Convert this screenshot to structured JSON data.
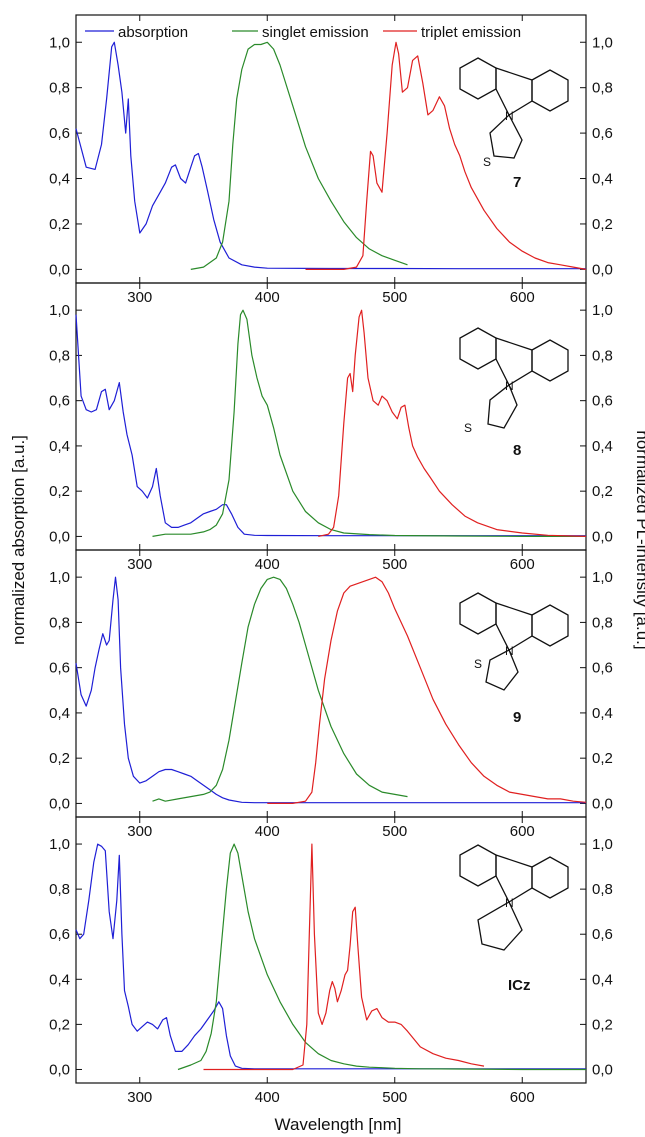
{
  "figure": {
    "ylabel_left": "normalized absorption [a.u.]",
    "ylabel_right": "normalized PL-intensity [a.u.]",
    "xlabel": "Wavelength [nm]"
  },
  "legend": {
    "absorption": "absorption",
    "singlet": "singlet emission",
    "triplet": "triplet emission"
  },
  "colors": {
    "absorption": "#1f1fd6",
    "singlet": "#2a8a2a",
    "triplet": "#e02020"
  },
  "chart_data": [
    {
      "type": "line",
      "compound_label": "7",
      "xlim": [
        250,
        650
      ],
      "ylim": [
        -0.06,
        1.12
      ],
      "x_ticks": [
        "300",
        "400",
        "500",
        "600"
      ],
      "y_ticks": [
        "0,0",
        "0,2",
        "0,4",
        "0,6",
        "0,8",
        "1,0"
      ],
      "series": [
        {
          "name": "absorption",
          "color": "#1f1fd6",
          "x": [
            250,
            258,
            265,
            270,
            274,
            278,
            280,
            283,
            286,
            289,
            291,
            293,
            296,
            300,
            305,
            310,
            316,
            320,
            325,
            328,
            332,
            336,
            340,
            343,
            346,
            349,
            353,
            358,
            363,
            370,
            380,
            390,
            400,
            450,
            500,
            550,
            600,
            650
          ],
          "y": [
            0.62,
            0.45,
            0.44,
            0.55,
            0.75,
            0.98,
            1.0,
            0.9,
            0.78,
            0.6,
            0.75,
            0.5,
            0.3,
            0.16,
            0.2,
            0.28,
            0.34,
            0.38,
            0.45,
            0.46,
            0.4,
            0.38,
            0.45,
            0.5,
            0.51,
            0.45,
            0.35,
            0.22,
            0.12,
            0.05,
            0.02,
            0.01,
            0.005,
            0.004,
            0.004,
            0.003,
            0.003,
            0.003
          ]
        },
        {
          "name": "singlet emission",
          "color": "#2a8a2a",
          "x": [
            340,
            350,
            360,
            365,
            370,
            373,
            376,
            380,
            385,
            390,
            395,
            400,
            405,
            410,
            420,
            430,
            440,
            450,
            460,
            470,
            480,
            490,
            500,
            510
          ],
          "y": [
            0.0,
            0.01,
            0.05,
            0.12,
            0.3,
            0.55,
            0.75,
            0.88,
            0.97,
            0.99,
            0.99,
            1.0,
            0.97,
            0.9,
            0.72,
            0.54,
            0.4,
            0.3,
            0.21,
            0.14,
            0.09,
            0.06,
            0.04,
            0.02
          ]
        },
        {
          "name": "triplet emission",
          "color": "#e02020",
          "x": [
            430,
            460,
            470,
            475,
            478,
            481,
            483,
            486,
            490,
            494,
            498,
            501,
            503,
            506,
            510,
            514,
            518,
            522,
            526,
            530,
            535,
            539,
            543,
            547,
            551,
            555,
            560,
            570,
            580,
            590,
            600,
            610,
            620,
            630,
            640,
            650
          ],
          "y": [
            0.0,
            0.0,
            0.01,
            0.06,
            0.3,
            0.52,
            0.5,
            0.38,
            0.34,
            0.6,
            0.9,
            1.0,
            0.95,
            0.78,
            0.8,
            0.92,
            0.94,
            0.82,
            0.68,
            0.7,
            0.76,
            0.72,
            0.62,
            0.55,
            0.5,
            0.43,
            0.36,
            0.26,
            0.18,
            0.12,
            0.08,
            0.05,
            0.03,
            0.02,
            0.01,
            0.0
          ]
        }
      ]
    },
    {
      "type": "line",
      "compound_label": "8",
      "xlim": [
        250,
        650
      ],
      "ylim": [
        -0.06,
        1.12
      ],
      "x_ticks": [
        "300",
        "400",
        "500",
        "600"
      ],
      "y_ticks": [
        "0,0",
        "0,2",
        "0,4",
        "0,6",
        "0,8",
        "1,0"
      ],
      "series": [
        {
          "name": "absorption",
          "color": "#1f1fd6",
          "x": [
            250,
            254,
            258,
            262,
            266,
            270,
            273,
            276,
            280,
            284,
            287,
            290,
            294,
            298,
            302,
            306,
            310,
            313,
            316,
            320,
            325,
            330,
            335,
            340,
            345,
            350,
            355,
            360,
            365,
            368,
            372,
            377,
            382,
            390,
            400,
            450,
            500,
            550,
            600,
            650
          ],
          "y": [
            0.98,
            0.62,
            0.56,
            0.55,
            0.56,
            0.64,
            0.65,
            0.56,
            0.6,
            0.68,
            0.55,
            0.45,
            0.36,
            0.22,
            0.2,
            0.17,
            0.22,
            0.3,
            0.18,
            0.06,
            0.04,
            0.04,
            0.05,
            0.06,
            0.08,
            0.1,
            0.11,
            0.12,
            0.14,
            0.14,
            0.1,
            0.04,
            0.01,
            0.005,
            0.004,
            0.003,
            0.003,
            0.003,
            0.003,
            0.003
          ]
        },
        {
          "name": "singlet emission",
          "color": "#2a8a2a",
          "x": [
            310,
            320,
            330,
            340,
            350,
            355,
            360,
            365,
            370,
            374,
            377,
            379,
            381,
            384,
            388,
            392,
            396,
            400,
            405,
            410,
            420,
            430,
            440,
            450,
            460,
            480,
            500,
            550,
            600,
            650
          ],
          "y": [
            0.0,
            0.01,
            0.01,
            0.01,
            0.02,
            0.03,
            0.05,
            0.1,
            0.25,
            0.55,
            0.85,
            0.98,
            1.0,
            0.96,
            0.8,
            0.7,
            0.62,
            0.58,
            0.48,
            0.36,
            0.2,
            0.11,
            0.06,
            0.03,
            0.015,
            0.008,
            0.004,
            0.002,
            0.0,
            0.0
          ]
        },
        {
          "name": "triplet emission",
          "color": "#e02020",
          "x": [
            440,
            448,
            452,
            456,
            460,
            463,
            465,
            467,
            469,
            472,
            474,
            476,
            479,
            483,
            487,
            490,
            494,
            498,
            502,
            505,
            508,
            511,
            514,
            518,
            523,
            528,
            535,
            545,
            555,
            565,
            580,
            600,
            620,
            650
          ],
          "y": [
            0.0,
            0.01,
            0.04,
            0.18,
            0.5,
            0.7,
            0.72,
            0.64,
            0.8,
            0.97,
            1.0,
            0.9,
            0.7,
            0.6,
            0.58,
            0.62,
            0.6,
            0.55,
            0.52,
            0.57,
            0.58,
            0.48,
            0.4,
            0.35,
            0.3,
            0.26,
            0.2,
            0.14,
            0.09,
            0.06,
            0.03,
            0.015,
            0.005,
            0.0
          ]
        }
      ]
    },
    {
      "type": "line",
      "compound_label": "9",
      "xlim": [
        250,
        650
      ],
      "ylim": [
        -0.06,
        1.12
      ],
      "x_ticks": [
        "300",
        "400",
        "500",
        "600"
      ],
      "y_ticks": [
        "0,0",
        "0,2",
        "0,4",
        "0,6",
        "0,8",
        "1,0"
      ],
      "series": [
        {
          "name": "absorption",
          "color": "#1f1fd6",
          "x": [
            250,
            254,
            258,
            262,
            265,
            268,
            271,
            274,
            276,
            279,
            281,
            283,
            285,
            288,
            291,
            295,
            300,
            305,
            310,
            315,
            320,
            325,
            330,
            335,
            340,
            345,
            350,
            355,
            360,
            365,
            370,
            380,
            390,
            400,
            450,
            500,
            550,
            600,
            650
          ],
          "y": [
            0.62,
            0.48,
            0.43,
            0.5,
            0.6,
            0.68,
            0.75,
            0.7,
            0.72,
            0.9,
            1.0,
            0.9,
            0.6,
            0.35,
            0.2,
            0.12,
            0.09,
            0.1,
            0.12,
            0.14,
            0.15,
            0.15,
            0.14,
            0.13,
            0.12,
            0.1,
            0.08,
            0.06,
            0.04,
            0.025,
            0.015,
            0.005,
            0.003,
            0.003,
            0.003,
            0.003,
            0.003,
            0.003,
            0.003
          ]
        },
        {
          "name": "singlet emission",
          "color": "#2a8a2a",
          "x": [
            310,
            315,
            320,
            330,
            340,
            350,
            355,
            360,
            365,
            370,
            375,
            380,
            385,
            390,
            395,
            400,
            405,
            410,
            415,
            420,
            425,
            430,
            440,
            450,
            460,
            470,
            480,
            490,
            500,
            510
          ],
          "y": [
            0.01,
            0.02,
            0.01,
            0.02,
            0.03,
            0.04,
            0.05,
            0.08,
            0.15,
            0.28,
            0.45,
            0.62,
            0.78,
            0.88,
            0.95,
            0.99,
            1.0,
            0.99,
            0.95,
            0.88,
            0.8,
            0.7,
            0.5,
            0.34,
            0.22,
            0.13,
            0.08,
            0.05,
            0.04,
            0.03
          ]
        },
        {
          "name": "triplet emission",
          "color": "#e02020",
          "x": [
            400,
            420,
            430,
            435,
            438,
            441,
            445,
            450,
            455,
            460,
            465,
            470,
            475,
            480,
            485,
            490,
            495,
            500,
            510,
            520,
            530,
            540,
            550,
            560,
            570,
            580,
            590,
            600,
            610,
            620,
            630,
            640,
            650
          ],
          "y": [
            0.0,
            0.0,
            0.01,
            0.05,
            0.18,
            0.35,
            0.55,
            0.72,
            0.85,
            0.93,
            0.96,
            0.97,
            0.98,
            0.99,
            1.0,
            0.98,
            0.93,
            0.86,
            0.74,
            0.6,
            0.46,
            0.35,
            0.26,
            0.18,
            0.12,
            0.08,
            0.05,
            0.04,
            0.03,
            0.02,
            0.02,
            0.01,
            0.005
          ]
        }
      ]
    },
    {
      "type": "line",
      "compound_label": "ICz",
      "xlim": [
        250,
        650
      ],
      "ylim": [
        -0.06,
        1.12
      ],
      "x_ticks": [
        "300",
        "400",
        "500",
        "600"
      ],
      "y_ticks": [
        "0,0",
        "0,2",
        "0,4",
        "0,6",
        "0,8",
        "1,0"
      ],
      "series": [
        {
          "name": "absorption",
          "color": "#1f1fd6",
          "x": [
            250,
            253,
            256,
            260,
            264,
            267,
            270,
            273,
            276,
            279,
            282,
            284,
            286,
            288,
            291,
            294,
            298,
            302,
            306,
            310,
            314,
            318,
            321,
            324,
            328,
            333,
            338,
            343,
            348,
            353,
            358,
            362,
            365,
            368,
            371,
            375,
            380,
            390,
            400,
            450,
            500,
            550,
            600,
            650
          ],
          "y": [
            0.62,
            0.58,
            0.6,
            0.75,
            0.92,
            1.0,
            0.99,
            0.97,
            0.7,
            0.58,
            0.75,
            0.95,
            0.6,
            0.35,
            0.28,
            0.2,
            0.17,
            0.19,
            0.21,
            0.2,
            0.18,
            0.22,
            0.23,
            0.15,
            0.08,
            0.08,
            0.11,
            0.15,
            0.18,
            0.22,
            0.26,
            0.3,
            0.27,
            0.15,
            0.06,
            0.015,
            0.005,
            0.003,
            0.003,
            0.003,
            0.003,
            0.003,
            0.003,
            0.003
          ]
        },
        {
          "name": "singlet emission",
          "color": "#2a8a2a",
          "x": [
            330,
            340,
            348,
            352,
            356,
            360,
            364,
            368,
            371,
            374,
            377,
            380,
            385,
            390,
            395,
            400,
            410,
            420,
            430,
            440,
            450,
            460,
            470,
            480,
            490,
            500,
            520,
            550,
            600,
            650
          ],
          "y": [
            0.0,
            0.02,
            0.04,
            0.08,
            0.16,
            0.3,
            0.55,
            0.8,
            0.96,
            1.0,
            0.96,
            0.86,
            0.7,
            0.58,
            0.5,
            0.42,
            0.3,
            0.2,
            0.12,
            0.07,
            0.04,
            0.025,
            0.015,
            0.01,
            0.008,
            0.005,
            0.003,
            0.002,
            0.0,
            0.0
          ]
        },
        {
          "name": "triplet emission",
          "color": "#e02020",
          "x": [
            350,
            420,
            428,
            431,
            433,
            435,
            437,
            440,
            443,
            446,
            449,
            451,
            453,
            455,
            458,
            461,
            463,
            465,
            467,
            469,
            471,
            474,
            478,
            482,
            486,
            490,
            495,
            500,
            505,
            510,
            520,
            530,
            540,
            550,
            560,
            570
          ],
          "y": [
            0.0,
            0.0,
            0.02,
            0.2,
            0.6,
            1.0,
            0.6,
            0.25,
            0.2,
            0.25,
            0.35,
            0.39,
            0.36,
            0.3,
            0.35,
            0.42,
            0.44,
            0.55,
            0.7,
            0.72,
            0.55,
            0.32,
            0.22,
            0.26,
            0.27,
            0.23,
            0.21,
            0.21,
            0.2,
            0.17,
            0.1,
            0.07,
            0.05,
            0.04,
            0.025,
            0.015
          ]
        }
      ]
    }
  ]
}
